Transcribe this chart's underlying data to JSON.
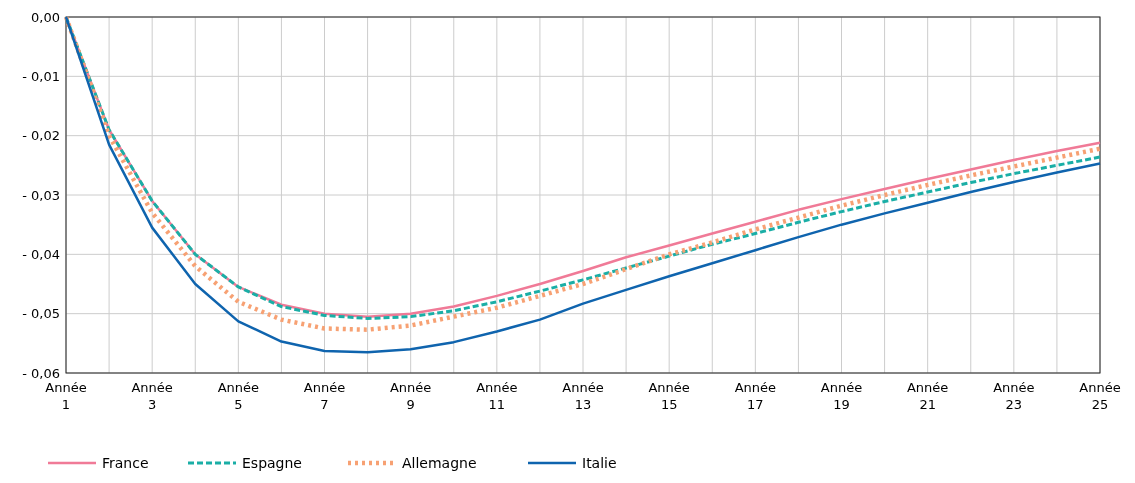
{
  "chart_data": {
    "type": "line",
    "categories": [
      "Année 1",
      null,
      "Année 3",
      null,
      "Année 5",
      null,
      "Année 7",
      null,
      "Année 9",
      null,
      "Année 11",
      null,
      "Année 13",
      null,
      "Année 15",
      null,
      "Année 17",
      null,
      "Année 19",
      null,
      "Année 21",
      null,
      "Année 23",
      null,
      "Année 25"
    ],
    "ylim": [
      -0.06,
      0
    ],
    "yticks": [
      {
        "value": 0,
        "label": "0,00"
      },
      {
        "value": -0.01,
        "label": "- 0,01"
      },
      {
        "value": -0.02,
        "label": "- 0,02"
      },
      {
        "value": -0.03,
        "label": "- 0,03"
      },
      {
        "value": -0.04,
        "label": "- 0,04"
      },
      {
        "value": -0.05,
        "label": "- 0,05"
      },
      {
        "value": -0.06,
        "label": "- 0,06"
      }
    ],
    "grid": true,
    "legend": "bottom",
    "marker": "none",
    "series": [
      {
        "name": "France",
        "color": "#f07a97",
        "line_style": "solid",
        "values": [
          0,
          -0.019,
          -0.031,
          -0.04,
          -0.0455,
          -0.0485,
          -0.05,
          -0.0505,
          -0.05,
          -0.0488,
          -0.047,
          -0.045,
          -0.0428,
          -0.0405,
          -0.0385,
          -0.0365,
          -0.0345,
          -0.0325,
          -0.0307,
          -0.029,
          -0.0273,
          -0.0257,
          -0.0241,
          -0.0226,
          -0.0212
        ]
      },
      {
        "name": "Espagne",
        "color": "#1aaea6",
        "line_style": "dashed",
        "values": [
          0,
          -0.019,
          -0.031,
          -0.04,
          -0.0455,
          -0.0488,
          -0.0503,
          -0.0508,
          -0.0505,
          -0.0495,
          -0.048,
          -0.0462,
          -0.0443,
          -0.0423,
          -0.0403,
          -0.0383,
          -0.0365,
          -0.0346,
          -0.0328,
          -0.0311,
          -0.0295,
          -0.0279,
          -0.0264,
          -0.025,
          -0.0236
        ]
      },
      {
        "name": "Allemagne",
        "color": "#f7a173",
        "line_style": "dotted",
        "values": [
          0,
          -0.02,
          -0.033,
          -0.042,
          -0.048,
          -0.051,
          -0.0525,
          -0.0527,
          -0.052,
          -0.0505,
          -0.049,
          -0.047,
          -0.045,
          -0.0425,
          -0.04,
          -0.038,
          -0.0358,
          -0.0338,
          -0.0318,
          -0.03,
          -0.0283,
          -0.0267,
          -0.0252,
          -0.0237,
          -0.0222
        ]
      },
      {
        "name": "Italie",
        "color": "#0f64ae",
        "line_style": "solid",
        "values": [
          0,
          -0.0215,
          -0.0355,
          -0.045,
          -0.0513,
          -0.0547,
          -0.0563,
          -0.0565,
          -0.056,
          -0.0548,
          -0.053,
          -0.051,
          -0.0483,
          -0.046,
          -0.0437,
          -0.0415,
          -0.0393,
          -0.0371,
          -0.035,
          -0.0331,
          -0.0313,
          -0.0295,
          -0.0278,
          -0.0262,
          -0.0247
        ]
      }
    ]
  }
}
